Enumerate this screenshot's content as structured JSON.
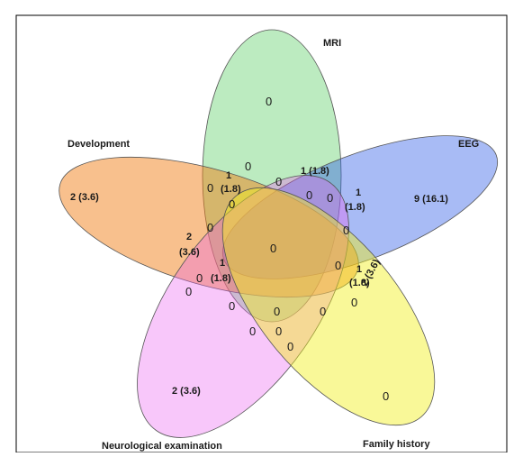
{
  "sets": [
    {
      "key": "mri",
      "label": "MRI",
      "color": "#5fcf6a"
    },
    {
      "key": "eeg",
      "label": "EEG",
      "color": "#2f5de8"
    },
    {
      "key": "development",
      "label": "Development",
      "color": "#f07c10"
    },
    {
      "key": "neuro",
      "label": "Neurological examination",
      "color": "#ea5ef0"
    },
    {
      "key": "family",
      "label": "Family history",
      "color": "#f2ef1a"
    }
  ],
  "regions": {
    "mri_only": "0",
    "eeg_only": "9 (16.1)",
    "dev_only": "2 (3.6)",
    "neuro_only": "2 (3.6)",
    "family_only": "0",
    "mri_eeg": "1 (1.8)",
    "mri_dev_1": "1",
    "mri_dev_1b": "(1.8)",
    "r_mri_a": "0",
    "r_mri_b": "0",
    "r_mri_c": "0",
    "r_mri_d": "0",
    "r_mri_e": "0",
    "eeg_neuro_1": "1",
    "eeg_neuro_1b": "(1.8)",
    "r_right_a": "0",
    "r_right_b": "0",
    "eeg_family": "2 (3.6)",
    "family_eeg_1": "1",
    "family_eeg_1b": "(1.8)",
    "r_right_c": "0",
    "dev_neuro_2": "2",
    "dev_neuro_2b": "(3.6)",
    "r_left_a": "0",
    "r_left_b": "0",
    "r_left_c": "0",
    "center": "0",
    "left_1": "1",
    "left_1b": "(1.8)",
    "r_bottom_a": "0",
    "r_bottom_b": "0",
    "r_bottom_c": "0",
    "r_bottom_d": "0",
    "r_bottom_e": "0",
    "r_bottom_f": "0"
  }
}
